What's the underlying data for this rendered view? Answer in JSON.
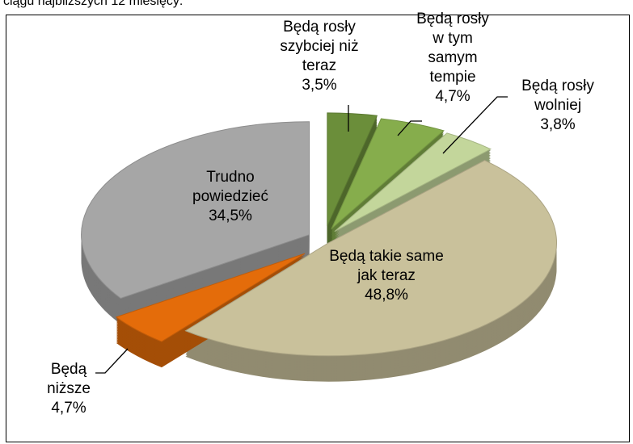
{
  "chart_data": {
    "type": "pie",
    "subtitle": "ciągu najbliższych 12 miesięcy:",
    "categories": [
      "Będą rosły szybciej niż teraz",
      "Będą rosły w tym samym tempie",
      "Będą rosły wolniej",
      "Będą takie same jak teraz",
      "Będą niższe",
      "Trudno powiedzieć"
    ],
    "values": [
      3.5,
      4.7,
      3.8,
      48.8,
      4.7,
      34.5
    ],
    "value_labels": [
      "3,5%",
      "4,7%",
      "3,8%",
      "48,8%",
      "4,7%",
      "34,5%"
    ],
    "colors": [
      "#6b8e3a",
      "#86ad4c",
      "#c3d69b",
      "#c9c19b",
      "#e46c0a",
      "#a6a6a6"
    ]
  }
}
